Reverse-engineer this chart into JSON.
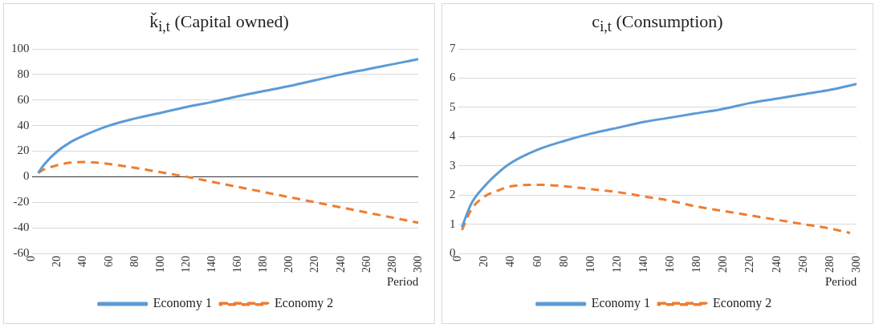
{
  "chart_data": [
    {
      "type": "line",
      "title": "ǩ$_{i,t}$ (Capital owned)",
      "xlabel": "Period",
      "xlim": [
        0,
        300
      ],
      "xticks": [
        0,
        20,
        40,
        60,
        80,
        100,
        120,
        140,
        160,
        180,
        200,
        220,
        240,
        260,
        280,
        300
      ],
      "ylim": [
        -60,
        100
      ],
      "yticks": [
        -60,
        -40,
        -20,
        0,
        20,
        40,
        60,
        80,
        100
      ],
      "grid": "y",
      "legend": "bottom",
      "marker": "none",
      "series": [
        {
          "name": "Economy 1",
          "color": "#5b9bd5",
          "line_style": "solid",
          "x": [
            5,
            10,
            20,
            30,
            40,
            60,
            80,
            100,
            120,
            140,
            160,
            180,
            200,
            220,
            240,
            260,
            280,
            300
          ],
          "values": [
            3,
            10,
            20,
            27,
            32,
            40,
            45.5,
            50,
            54.5,
            58.5,
            63,
            67,
            71,
            75.5,
            80,
            84,
            88,
            92
          ]
        },
        {
          "name": "Economy 2",
          "color": "#ed7d31",
          "line_style": "dashed",
          "x": [
            5,
            10,
            20,
            30,
            40,
            50,
            60,
            80,
            100,
            120,
            140,
            160,
            180,
            200,
            220,
            240,
            260,
            280,
            300
          ],
          "values": [
            3,
            6,
            9,
            11,
            11.5,
            11,
            10,
            7,
            3.5,
            0,
            -4,
            -8,
            -12,
            -16,
            -20,
            -24,
            -28,
            -32,
            -36
          ]
        }
      ]
    },
    {
      "type": "line",
      "title": "c$_{i,t}$ (Consumption)",
      "xlabel": "Period",
      "xlim": [
        0,
        300
      ],
      "xticks": [
        0,
        20,
        40,
        60,
        80,
        100,
        120,
        140,
        160,
        180,
        200,
        220,
        240,
        260,
        280,
        300
      ],
      "ylim": [
        0,
        7
      ],
      "yticks": [
        0,
        1,
        2,
        3,
        4,
        5,
        6,
        7
      ],
      "grid": "y",
      "legend": "bottom",
      "marker": "none",
      "series": [
        {
          "name": "Economy 1",
          "color": "#5b9bd5",
          "line_style": "solid",
          "x": [
            3,
            10,
            20,
            30,
            40,
            60,
            80,
            100,
            120,
            140,
            160,
            180,
            200,
            220,
            240,
            260,
            280,
            300
          ],
          "values": [
            0.9,
            1.7,
            2.3,
            2.75,
            3.1,
            3.55,
            3.85,
            4.1,
            4.3,
            4.5,
            4.65,
            4.8,
            4.95,
            5.15,
            5.3,
            5.45,
            5.6,
            5.8
          ]
        },
        {
          "name": "Economy 2",
          "color": "#ed7d31",
          "line_style": "dashed",
          "x": [
            3,
            10,
            20,
            30,
            40,
            60,
            80,
            100,
            120,
            140,
            160,
            180,
            200,
            220,
            240,
            260,
            280,
            295
          ],
          "values": [
            0.8,
            1.5,
            1.95,
            2.15,
            2.3,
            2.35,
            2.3,
            2.2,
            2.1,
            1.95,
            1.8,
            1.6,
            1.45,
            1.3,
            1.15,
            1,
            0.85,
            0.7
          ]
        }
      ]
    }
  ]
}
